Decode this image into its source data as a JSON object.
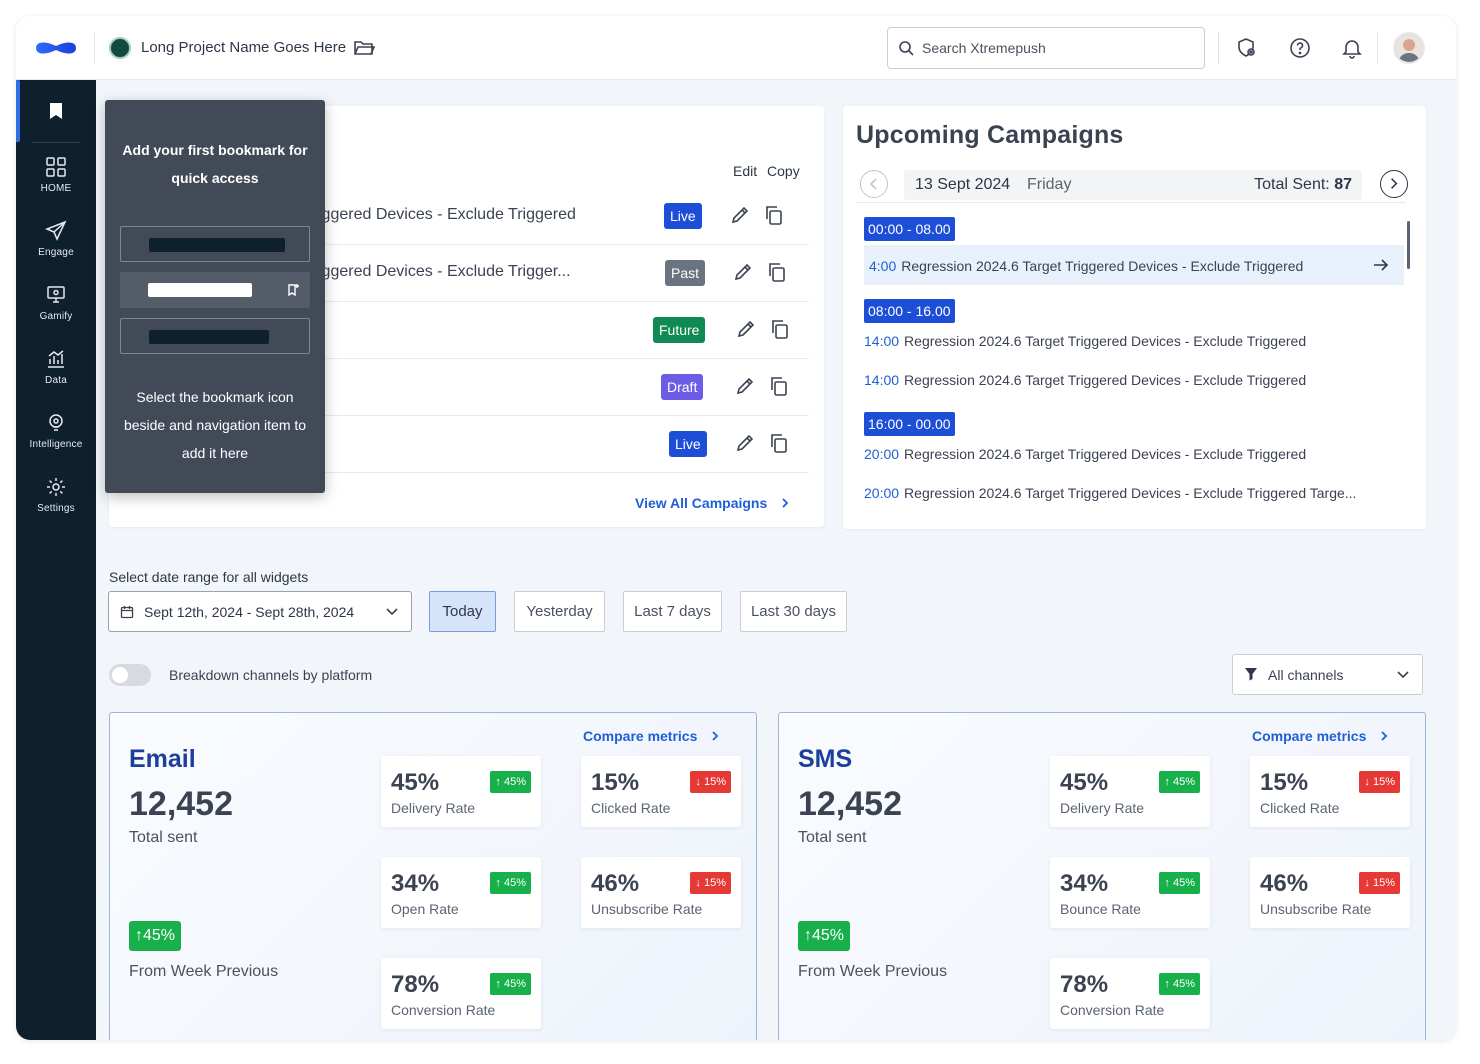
{
  "header": {
    "project_name": "Long Project Name Goes Here",
    "search_placeholder": "Search Xtremepush"
  },
  "sidebar": {
    "items": [
      {
        "label": "HOME",
        "icon": "grid-icon"
      },
      {
        "label": "Engage",
        "icon": "send-icon"
      },
      {
        "label": "Gamify",
        "icon": "monitor-icon"
      },
      {
        "label": "Data",
        "icon": "chart-icon"
      },
      {
        "label": "Intelligence",
        "icon": "bulb-icon"
      },
      {
        "label": "Settings",
        "icon": "gear-icon"
      }
    ]
  },
  "bookmark_tooltip": {
    "title": "Add your first bookmark for quick access",
    "body": "Select the bookmark icon beside and navigation item to add it here"
  },
  "campaigns": {
    "col_edit": "Edit",
    "col_copy": "Copy",
    "rows": [
      {
        "title": "iggered Devices - Exclude Triggered",
        "status": "Live",
        "status_color": "#1d4ed8"
      },
      {
        "title": "iggered Devices - Exclude Trigger...",
        "status": "Past",
        "status_color": "#6b7280"
      },
      {
        "title": "",
        "status": "Future",
        "status_color": "#0f8a55"
      },
      {
        "title": "",
        "status": "Draft",
        "status_color": "#6d5ce8"
      },
      {
        "title": "",
        "status": "Live",
        "status_color": "#1d4ed8"
      }
    ],
    "view_all": "View All Campaigns"
  },
  "upcoming": {
    "title": "Upcoming Campaigns",
    "date": "13 Sept 2024",
    "day": "Friday",
    "total_label": "Total Sent:",
    "total_value": "87",
    "slots": [
      {
        "label": "00:00 - 08.00",
        "items": [
          {
            "time": "4:00",
            "name": "Regression 2024.6 Target Triggered Devices - Exclude Triggered"
          }
        ]
      },
      {
        "label": "08:00 - 16.00",
        "items": [
          {
            "time": "14:00",
            "name": "Regression 2024.6 Target Triggered Devices - Exclude Triggered"
          },
          {
            "time": "14:00",
            "name": "Regression 2024.6 Target Triggered Devices - Exclude Triggered"
          }
        ]
      },
      {
        "label": "16:00 - 00.00",
        "items": [
          {
            "time": "20:00",
            "name": "Regression 2024.6 Target Triggered Devices - Exclude Triggered"
          },
          {
            "time": "20:00",
            "name": "Regression 2024.6 Target Triggered Devices - Exclude Triggered Targe..."
          }
        ]
      }
    ]
  },
  "filters": {
    "range_label": "Select date range for all widgets",
    "range_value": "Sept 12th, 2024 - Sept 28th, 2024",
    "quick": [
      "Today",
      "Yesterday",
      "Last 7 days",
      "Last 30 days"
    ],
    "active_quick": "Today",
    "breakdown_label": "Breakdown channels by platform",
    "channels_value": "All channels"
  },
  "channels": [
    {
      "name": "Email",
      "total": "12,452",
      "total_label": "Total sent",
      "change": "45%",
      "change_label": "From Week Previous",
      "compare": "Compare metrics",
      "metrics": [
        {
          "value": "45%",
          "label": "Delivery Rate",
          "change": "45%",
          "dir": "up"
        },
        {
          "value": "15%",
          "label": "Clicked Rate",
          "change": "15%",
          "dir": "down"
        },
        {
          "value": "34%",
          "label": "Open Rate",
          "change": "45%",
          "dir": "up"
        },
        {
          "value": "46%",
          "label": "Unsubscribe Rate",
          "change": "15%",
          "dir": "down"
        },
        {
          "value": "78%",
          "label": "Conversion Rate",
          "change": "45%",
          "dir": "up"
        }
      ]
    },
    {
      "name": "SMS",
      "total": "12,452",
      "total_label": "Total sent",
      "change": "45%",
      "change_label": "From Week Previous",
      "compare": "Compare metrics",
      "metrics": [
        {
          "value": "45%",
          "label": "Delivery Rate",
          "change": "45%",
          "dir": "up"
        },
        {
          "value": "15%",
          "label": "Clicked Rate",
          "change": "15%",
          "dir": "down"
        },
        {
          "value": "34%",
          "label": "Bounce Rate",
          "change": "45%",
          "dir": "up"
        },
        {
          "value": "46%",
          "label": "Unsubscribe Rate",
          "change": "15%",
          "dir": "down"
        },
        {
          "value": "78%",
          "label": "Conversion Rate",
          "change": "45%",
          "dir": "up"
        }
      ]
    }
  ]
}
